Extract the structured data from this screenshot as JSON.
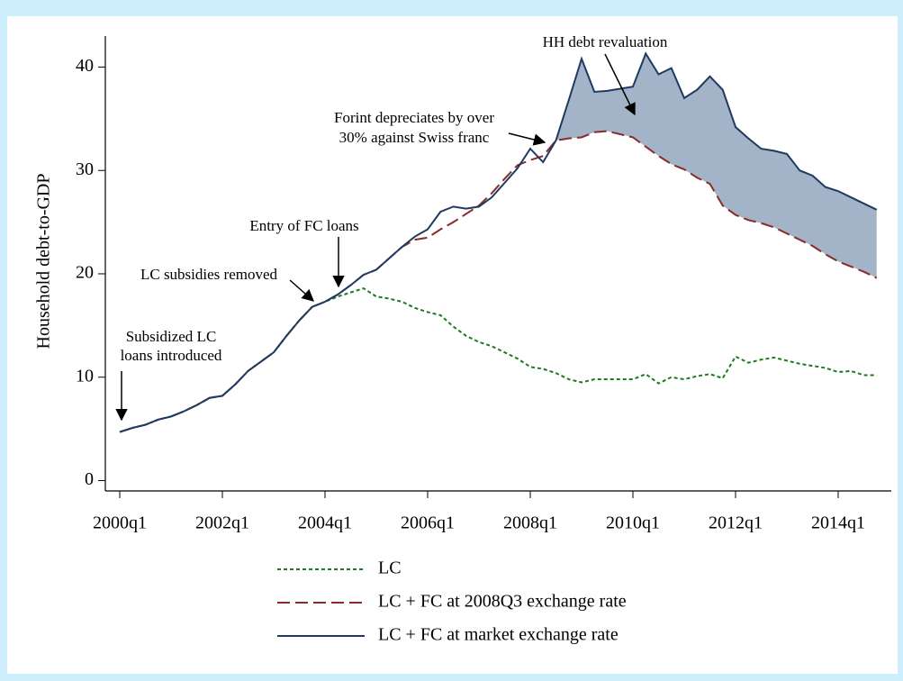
{
  "chart_data": {
    "type": "line",
    "ylabel": "Household debt-to-GDP",
    "categories": [
      "2000q1",
      null,
      null,
      null,
      null,
      null,
      null,
      null,
      "2002q1",
      null,
      null,
      null,
      null,
      null,
      null,
      null,
      "2004q1",
      null,
      null,
      null,
      null,
      null,
      null,
      null,
      "2006q1",
      null,
      null,
      null,
      null,
      null,
      null,
      null,
      "2008q1",
      null,
      null,
      null,
      null,
      null,
      null,
      null,
      "2010q1",
      null,
      null,
      null,
      null,
      null,
      null,
      null,
      "2012q1",
      null,
      null,
      null,
      null,
      null,
      null,
      null,
      "2014q1",
      null,
      null,
      null
    ],
    "ylim": [
      -1,
      43
    ],
    "yticks": [
      0,
      10,
      20,
      30,
      40
    ],
    "series": [
      {
        "name": "LC",
        "color": "#1e7a1e",
        "style": "dotted",
        "values": [
          4.7,
          5.1,
          5.4,
          5.9,
          6.2,
          6.7,
          7.3,
          8.0,
          8.2,
          9.3,
          10.6,
          11.5,
          12.4,
          14.0,
          15.5,
          16.8,
          17.3,
          17.8,
          18.2,
          18.6,
          17.8,
          17.6,
          17.3,
          16.7,
          16.3,
          16.0,
          14.9,
          14.0,
          13.4,
          13.0,
          12.4,
          11.8,
          11.0,
          10.8,
          10.4,
          9.8,
          9.5,
          9.8,
          9.8,
          9.8,
          9.8,
          10.3,
          9.4,
          10.0,
          9.8,
          10.1,
          10.3,
          9.9,
          12.0,
          11.4,
          11.7,
          11.9,
          11.6,
          11.3,
          11.1,
          10.9,
          10.5,
          10.6,
          10.2,
          10.2
        ]
      },
      {
        "name": "LC + FC at 2008Q3 exchange rate",
        "color": "#8b2a2a",
        "style": "dashed",
        "values": [
          4.7,
          5.1,
          5.4,
          5.9,
          6.2,
          6.7,
          7.3,
          8.0,
          8.2,
          9.3,
          10.6,
          11.5,
          12.4,
          14.0,
          15.5,
          16.8,
          17.3,
          18.0,
          18.9,
          19.9,
          20.4,
          21.5,
          22.6,
          23.3,
          23.5,
          24.3,
          25.0,
          25.8,
          26.6,
          27.8,
          29.2,
          30.5,
          31.0,
          31.4,
          32.9,
          33.1,
          33.2,
          33.7,
          33.8,
          33.5,
          33.2,
          32.3,
          31.4,
          30.6,
          30.1,
          29.3,
          28.7,
          26.6,
          25.7,
          25.2,
          24.9,
          24.5,
          23.9,
          23.3,
          22.7,
          21.9,
          21.2,
          20.7,
          20.2,
          19.6
        ]
      },
      {
        "name": "LC + FC at market exchange rate",
        "color": "#1f3a5f",
        "style": "solid",
        "values": [
          4.7,
          5.1,
          5.4,
          5.9,
          6.2,
          6.7,
          7.3,
          8.0,
          8.2,
          9.3,
          10.6,
          11.5,
          12.4,
          14.0,
          15.5,
          16.8,
          17.3,
          18.0,
          18.9,
          19.9,
          20.4,
          21.5,
          22.6,
          23.6,
          24.3,
          26.0,
          26.5,
          26.3,
          26.5,
          27.4,
          28.8,
          30.2,
          32.1,
          30.8,
          32.9,
          36.8,
          40.8,
          37.6,
          37.7,
          37.9,
          38.1,
          41.3,
          39.3,
          39.9,
          37.0,
          37.8,
          39.1,
          37.8,
          34.2,
          33.1,
          32.1,
          31.9,
          31.6,
          30.0,
          29.5,
          28.4,
          28.0,
          27.4,
          26.8,
          26.2
        ]
      }
    ],
    "fill_color": "#a3b4c8",
    "annotations": [
      {
        "text": [
          "HH debt revaluation"
        ]
      },
      {
        "text": [
          "Forint depreciates by over",
          "30% against Swiss franc"
        ]
      },
      {
        "text": [
          "Entry of FC loans"
        ]
      },
      {
        "text": [
          "LC subsidies removed"
        ]
      },
      {
        "text": [
          "Subsidized LC",
          "loans introduced"
        ]
      }
    ]
  }
}
